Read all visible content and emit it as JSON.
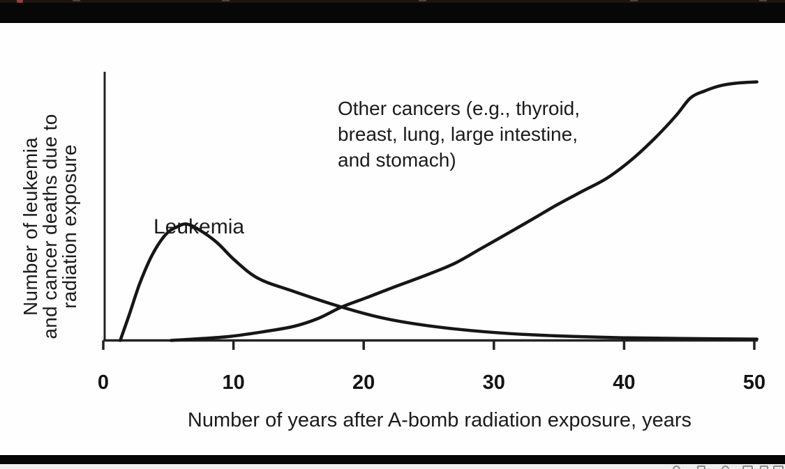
{
  "frame": {
    "background": "#ffffff",
    "letterbox_color": "#060606",
    "curve_color": "#161616",
    "text_color": "#1b1b1b",
    "favicon_red": "#93403c"
  },
  "chart": {
    "y_axis_label": "Number of leukemia\nand cancer deaths due to\nradiation exposure",
    "x_axis_label": "Number of years after A-bomb radiation exposure, years",
    "leukemia_label": "Leukemia",
    "other_cancers_label": "Other cancers (e.g., thyroid,\nbreast, lung, large intestine,\nand stomach)"
  },
  "chart_data": {
    "type": "line",
    "title": "",
    "xlabel": "Number of years after A-bomb radiation exposure, years",
    "ylabel": "Number of leukemia and cancer deaths due to radiation exposure",
    "xlim": [
      0,
      52
    ],
    "ylim_relative": [
      0,
      1.05
    ],
    "grid": false,
    "legend_position": "none",
    "x_tick_values": [
      0,
      10,
      20,
      30,
      40,
      50
    ],
    "annotations": [
      "Leukemia",
      "Other cancers (e.g., thyroid, breast, lung, large intestine, and stomach)"
    ],
    "series": [
      {
        "name": "Leukemia",
        "x": [
          1.3,
          2.0,
          2.8,
          3.75,
          4.8,
          5.7,
          6.4,
          7.3,
          8.7,
          10.1,
          11.9,
          14.6,
          18.3,
          22.1,
          26.9,
          32.8,
          40.3,
          50.2
        ],
        "y": [
          0.0,
          0.1,
          0.22,
          0.33,
          0.41,
          0.44,
          0.45,
          0.43,
          0.38,
          0.31,
          0.24,
          0.19,
          0.129,
          0.08,
          0.045,
          0.022,
          0.01,
          0.005
        ]
      },
      {
        "name": "Other cancers (e.g., thyroid, breast, lung, large intestine, and stomach)",
        "x": [
          5.2,
          7.5,
          9.8,
          12.2,
          14.6,
          16.5,
          18.3,
          20.2,
          22.1,
          24.5,
          26.9,
          29.0,
          31.2,
          33.0,
          34.9,
          36.8,
          38.7,
          40.6,
          42.4,
          44.0,
          45.1,
          46.2,
          47.3,
          48.6,
          50.2
        ],
        "y": [
          0.0,
          0.007,
          0.016,
          0.033,
          0.054,
          0.085,
          0.129,
          0.165,
          0.202,
          0.247,
          0.296,
          0.355,
          0.418,
          0.47,
          0.526,
          0.577,
          0.628,
          0.7,
          0.784,
          0.87,
          0.938,
          0.965,
          0.984,
          0.995,
          1.0
        ]
      }
    ]
  },
  "player": {
    "controls": [
      {
        "icon": "autoplay-toggle-icon"
      },
      {
        "icon": "subtitles-icon"
      },
      {
        "icon": "settings-gear-icon"
      },
      {
        "icon": "miniplayer-icon"
      },
      {
        "icon": "theater-mode-icon"
      },
      {
        "icon": "fullscreen-icon"
      }
    ]
  }
}
